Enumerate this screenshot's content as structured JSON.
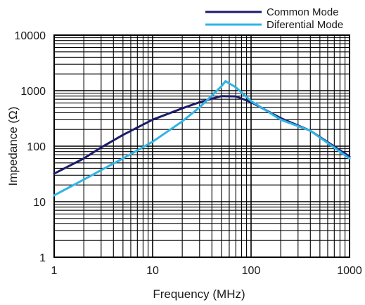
{
  "chart_data": {
    "type": "line",
    "xlabel": "Frequency (MHz)",
    "ylabel": "Impedance (Ω)",
    "x_scale": "log",
    "y_scale": "log",
    "xlim": [
      1,
      1000
    ],
    "ylim": [
      1,
      10000
    ],
    "x_ticks": [
      1,
      10,
      100,
      1000
    ],
    "x_tick_labels": [
      "1",
      "10",
      "100",
      "1000"
    ],
    "y_ticks": [
      1,
      10,
      100,
      1000,
      10000
    ],
    "y_tick_labels": [
      "1",
      "10",
      "100",
      "1000",
      "10000"
    ],
    "grid": true,
    "legend_position": "top-right",
    "series": [
      {
        "name": "Common Mode",
        "color": "#1b1b6b",
        "x": [
          1,
          2,
          3,
          5,
          10,
          20,
          30,
          50,
          70,
          100,
          200,
          400,
          1000
        ],
        "y": [
          32,
          60,
          95,
          160,
          300,
          480,
          620,
          800,
          790,
          620,
          320,
          190,
          65
        ]
      },
      {
        "name": "Diferential Mode",
        "color": "#2fb4e6",
        "x": [
          1,
          2,
          3,
          5,
          10,
          20,
          30,
          50,
          55,
          70,
          100,
          200,
          400,
          1000
        ],
        "y": [
          13,
          25,
          37,
          60,
          120,
          280,
          500,
          1200,
          1480,
          1150,
          650,
          300,
          190,
          60
        ]
      }
    ]
  }
}
